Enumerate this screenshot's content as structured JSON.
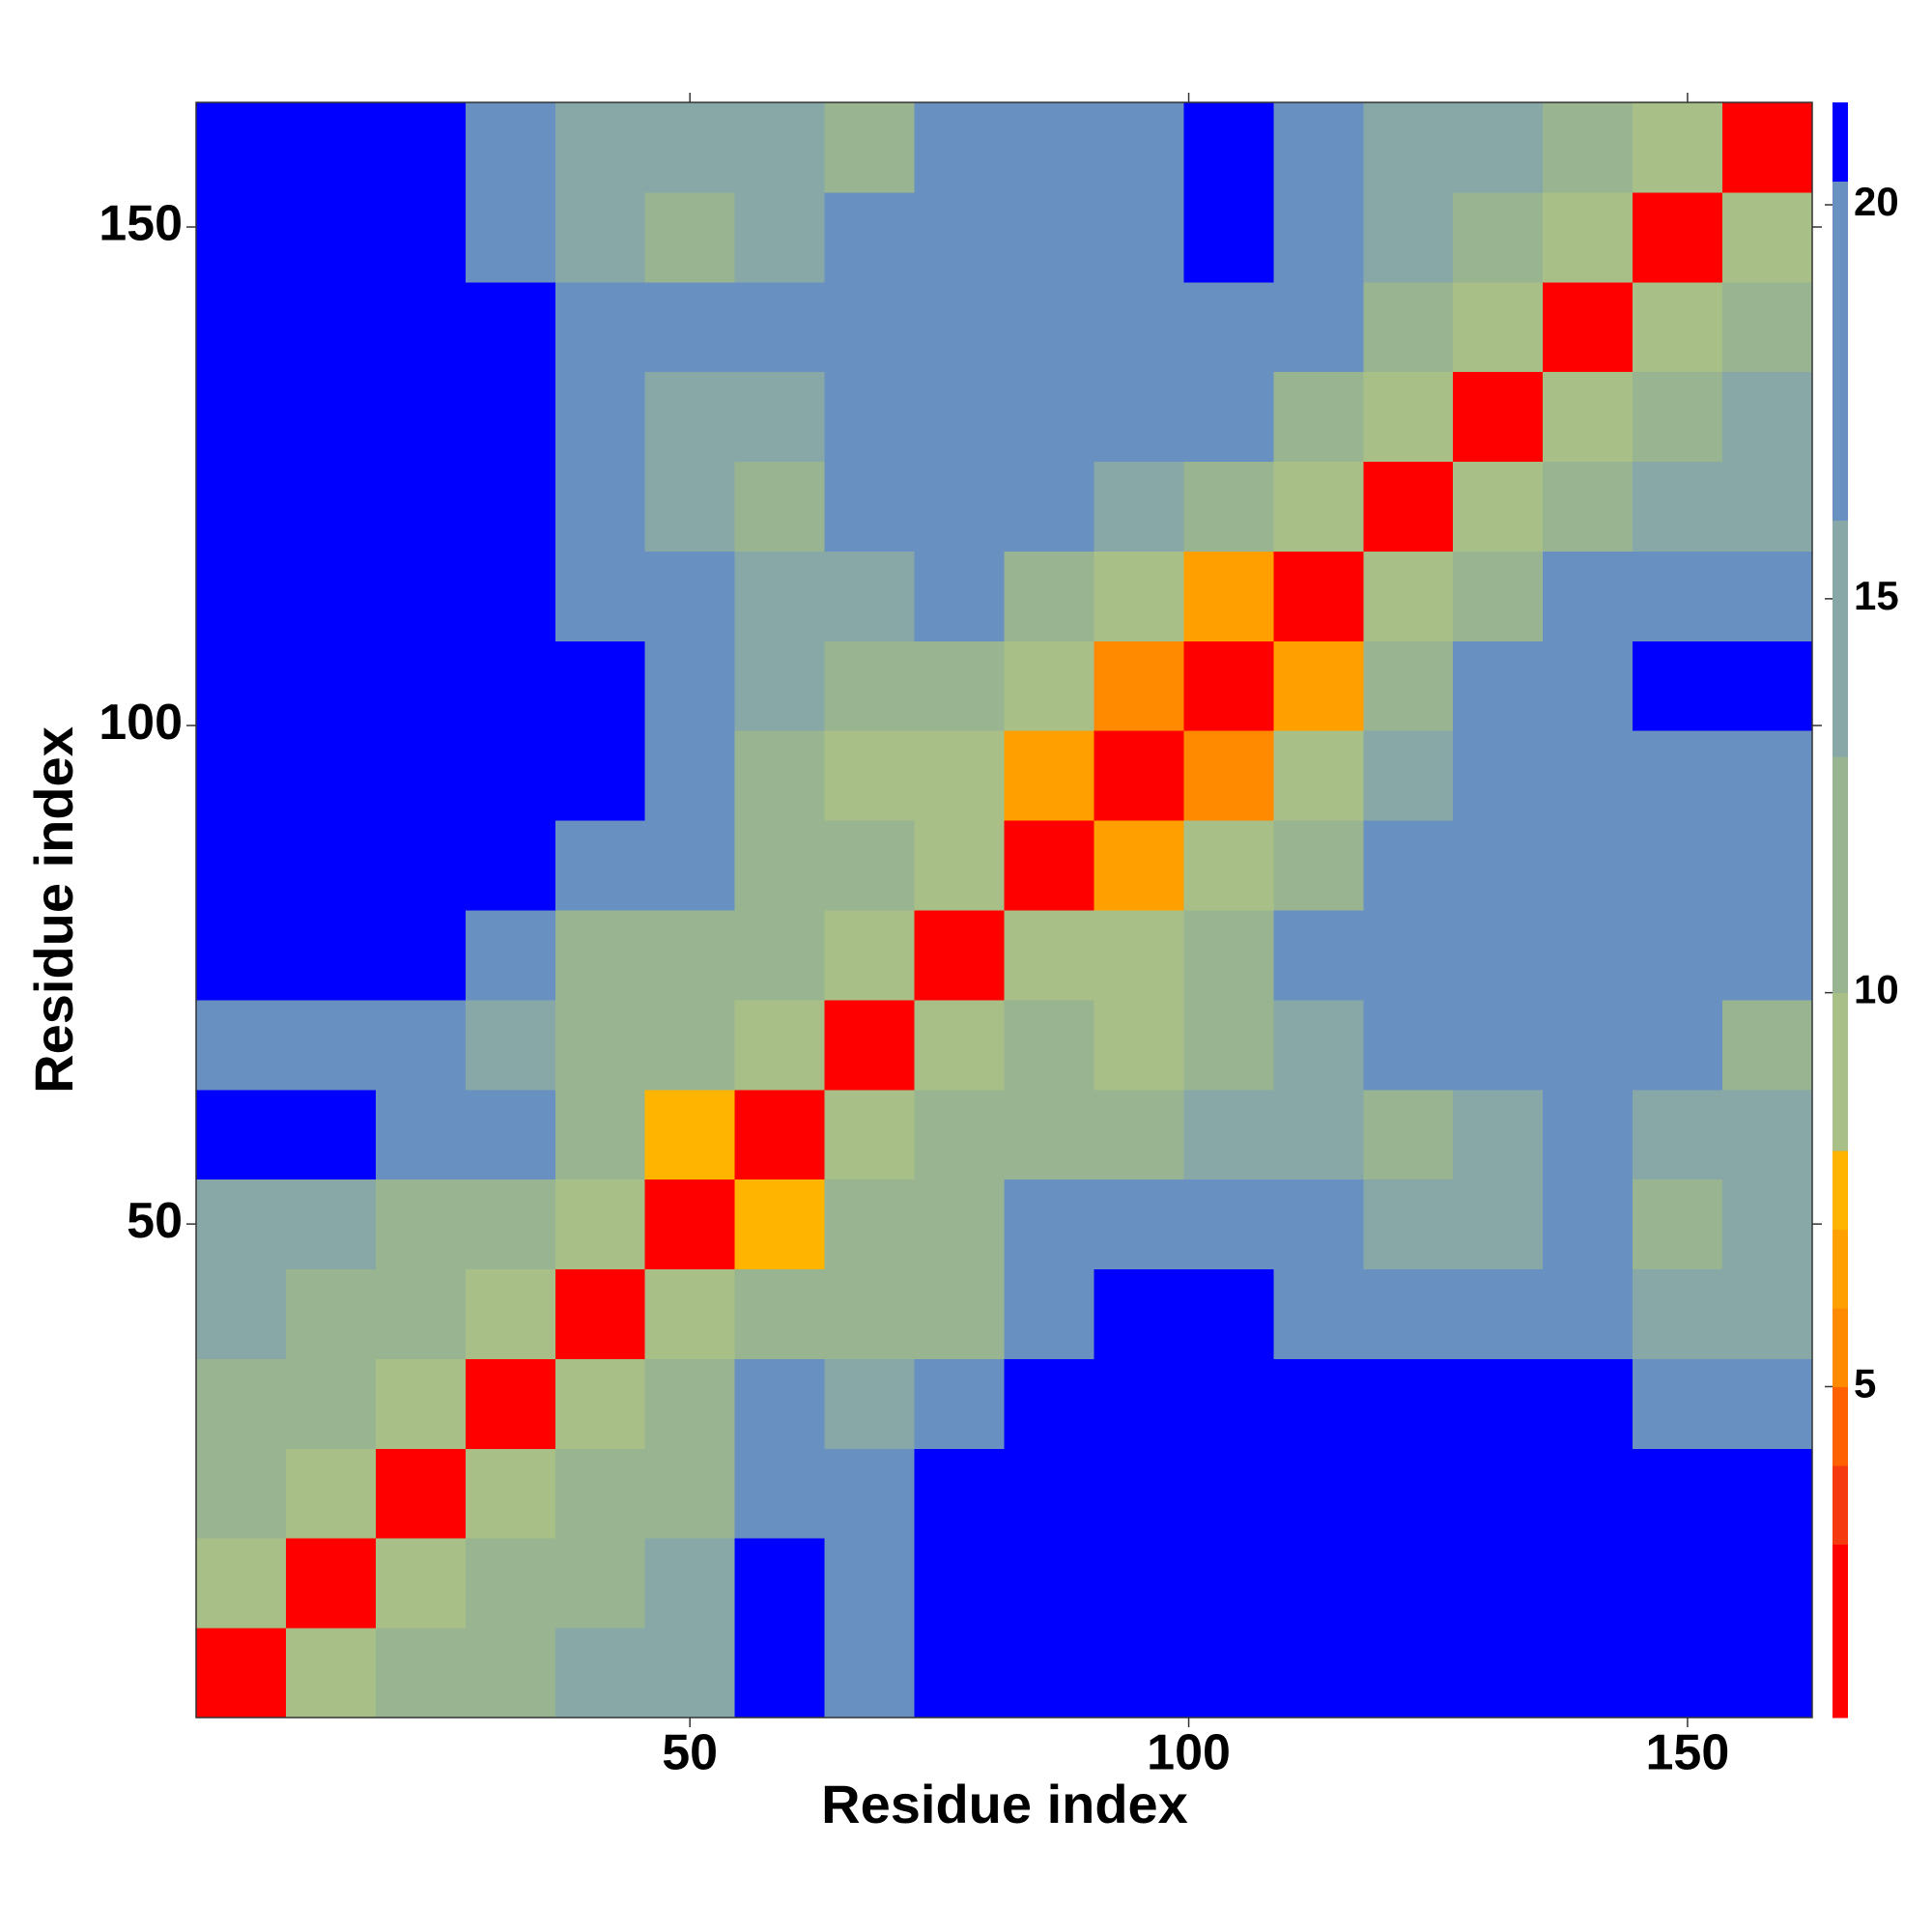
{
  "chart_data": {
    "type": "heatmap",
    "x_label": "Residue index",
    "y_label": "Residue index",
    "xlim": [
      0.5,
      162.5
    ],
    "ylim": [
      0.5,
      162.5
    ],
    "xticks": [
      50,
      100,
      150
    ],
    "yticks": [
      50,
      100,
      150
    ],
    "x_edges": [
      0.5,
      9.5,
      18.5,
      27.5,
      36.5,
      45.5,
      54.5,
      63.5,
      72.5,
      81.5,
      90.5,
      99.5,
      108.5,
      117.5,
      126.5,
      135.5,
      144.5,
      153.5,
      162.5
    ],
    "y_edges": [
      0.5,
      9.5,
      18.5,
      27.5,
      36.5,
      45.5,
      54.5,
      63.5,
      72.5,
      81.5,
      90.5,
      99.5,
      108.5,
      117.5,
      126.5,
      135.5,
      144.5,
      153.5,
      162.5
    ],
    "z": [
      [
        3,
        9,
        12,
        13,
        14,
        16,
        21,
        19,
        21,
        21,
        21,
        21,
        21,
        21,
        21,
        21,
        21,
        21
      ],
      [
        9,
        3,
        9,
        12,
        13,
        15,
        21,
        20,
        21,
        21,
        21,
        21,
        21,
        21,
        21,
        21,
        21,
        21
      ],
      [
        12,
        9,
        3,
        9,
        12,
        13,
        19,
        19,
        21,
        21,
        21,
        21,
        21,
        21,
        21,
        21,
        21,
        21
      ],
      [
        13,
        12,
        9,
        3,
        9,
        11,
        17,
        15,
        19,
        21,
        21,
        21,
        21,
        21,
        21,
        21,
        18,
        19
      ],
      [
        14,
        13,
        12,
        9,
        3,
        9,
        13,
        12,
        13,
        18,
        21,
        21,
        19,
        18,
        20,
        17,
        14,
        15
      ],
      [
        16,
        15,
        13,
        11,
        9,
        3,
        8,
        11,
        13,
        17,
        18,
        19,
        17,
        15,
        14,
        17,
        13,
        14
      ],
      [
        21,
        21,
        19,
        17,
        13,
        8,
        3,
        9,
        11,
        12,
        11,
        14,
        14,
        12,
        15,
        17,
        16,
        15
      ],
      [
        19,
        20,
        19,
        15,
        12,
        11,
        9,
        3,
        9,
        11,
        9,
        13,
        16,
        17,
        18,
        20,
        17,
        13
      ],
      [
        21,
        21,
        21,
        19,
        13,
        13,
        11,
        9,
        3,
        9,
        10,
        11,
        17,
        18,
        19,
        18,
        19,
        17
      ],
      [
        21,
        21,
        21,
        21,
        18,
        17,
        12,
        11,
        9,
        3,
        7,
        9,
        13,
        17,
        18,
        19,
        18,
        17
      ],
      [
        21,
        21,
        21,
        21,
        21,
        18,
        11,
        9,
        10,
        7,
        3,
        6,
        9,
        16,
        18,
        19,
        20,
        19
      ],
      [
        21,
        21,
        21,
        21,
        21,
        19,
        14,
        13,
        11,
        9,
        6,
        3,
        7,
        13,
        17,
        19,
        21,
        21
      ],
      [
        21,
        21,
        21,
        21,
        19,
        17,
        14,
        16,
        17,
        13,
        9,
        7,
        3,
        9,
        13,
        17,
        18,
        17
      ],
      [
        21,
        21,
        21,
        21,
        18,
        15,
        12,
        17,
        18,
        17,
        16,
        13,
        9,
        3,
        9,
        12,
        14,
        16
      ],
      [
        21,
        21,
        21,
        21,
        20,
        14,
        15,
        18,
        19,
        18,
        18,
        17,
        13,
        9,
        3,
        9,
        12,
        14
      ],
      [
        21,
        21,
        21,
        21,
        17,
        17,
        17,
        20,
        18,
        19,
        19,
        19,
        17,
        12,
        9,
        3,
        9,
        12
      ],
      [
        21,
        21,
        21,
        18,
        14,
        13,
        16,
        17,
        19,
        18,
        20,
        21,
        18,
        14,
        12,
        9,
        3,
        9
      ],
      [
        21,
        21,
        21,
        19,
        15,
        14,
        15,
        13,
        17,
        17,
        19,
        21,
        17,
        16,
        14,
        12,
        9,
        3
      ]
    ],
    "colorbar": {
      "lim": [
        0.8,
        21.3
      ],
      "ticks": [
        5,
        10,
        15,
        20
      ],
      "bounds": [
        0.8,
        3,
        4,
        5,
        6,
        7,
        8,
        10,
        13,
        16,
        20.3,
        21.3
      ],
      "colors": [
        "#ff0000",
        "#f53a10",
        "#ff6000",
        "#ff8a00",
        "#ffa000",
        "#ffb400",
        "#a8c088",
        "#98b490",
        "#88a8a8",
        "#6890c0",
        "#0000ff"
      ]
    }
  }
}
